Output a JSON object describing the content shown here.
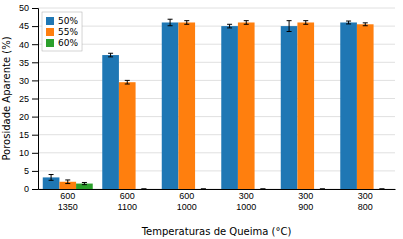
{
  "chart_data": {
    "type": "bar",
    "categories": [
      "600\n1350",
      "600\n1100",
      "600\n1000",
      "300\n1000",
      "300\n900",
      "300\n800"
    ],
    "series": [
      {
        "name": "50%",
        "values": [
          3.2,
          37.0,
          46.0,
          45.0,
          45.0,
          46.0
        ],
        "errors": [
          0.8,
          0.5,
          0.9,
          0.5,
          1.5,
          0.4
        ]
      },
      {
        "name": "55%",
        "values": [
          2.0,
          29.5,
          46.0,
          46.0,
          46.0,
          45.5
        ],
        "errors": [
          0.5,
          0.5,
          0.5,
          0.5,
          0.5,
          0.4
        ]
      },
      {
        "name": "60%",
        "values": [
          1.5,
          0,
          0,
          0,
          0,
          0
        ],
        "errors": [
          0.3,
          0,
          0,
          0,
          0,
          0
        ]
      }
    ],
    "xlabel": "Temperaturas de Queima (°C)",
    "ylabel": "Porosidade Aparente (%)",
    "ylim": [
      0,
      50
    ],
    "yticks": [
      0,
      5,
      10,
      15,
      20,
      25,
      30,
      35,
      40,
      45,
      50
    ],
    "grid": true,
    "legend": "upper-left"
  }
}
